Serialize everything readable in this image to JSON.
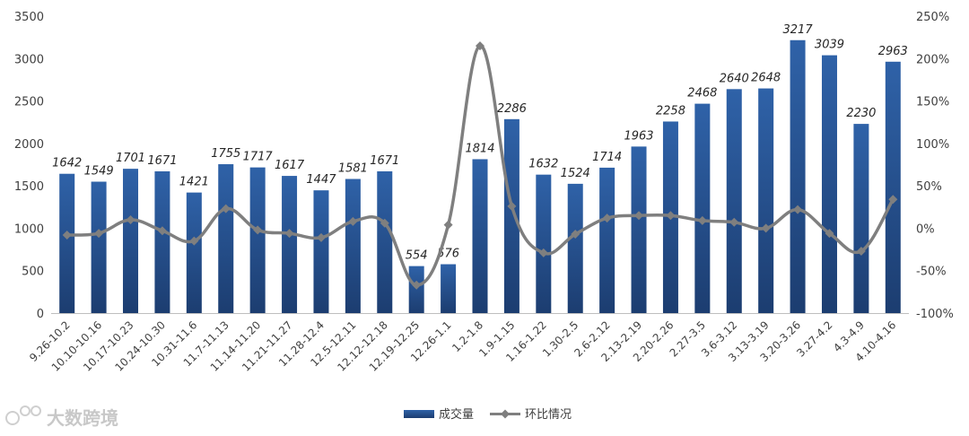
{
  "watermark": "大数跨境",
  "chart_data": {
    "type": "bar",
    "categories": [
      "9.26-10.2",
      "10.10-10.16",
      "10.17-10.23",
      "10.24-10.30",
      "10.31-11.6",
      "11.7-11.13",
      "11.14-11.20",
      "11.21-11.27",
      "11.28-12.4",
      "12.5-12.11",
      "12.12-12.18",
      "12.19-12.25",
      "12.26-1.1",
      "1.2-1.8",
      "1.9-1.15",
      "1.16-1.22",
      "1.30-2.5",
      "2.6-2.12",
      "2.13-2.19",
      "2.20-2.26",
      "2.27-3.5",
      "3.6-3.12",
      "3.13-3.19",
      "3.20-3.26",
      "3.27-4.2",
      "4.3-4.9",
      "4.10-4.16"
    ],
    "series": [
      {
        "name": "成交量",
        "type": "bar",
        "axis": "left",
        "color": "#2e5c9e",
        "values": [
          1642,
          1549,
          1701,
          1671,
          1421,
          1755,
          1717,
          1617,
          1447,
          1581,
          1671,
          554,
          576,
          1814,
          2286,
          1632,
          1524,
          1714,
          1963,
          2258,
          2468,
          2640,
          2648,
          3217,
          3039,
          2230,
          2963
        ]
      },
      {
        "name": "环比情况",
        "type": "line",
        "axis": "right",
        "color": "#7f7f7f",
        "values": [
          -8,
          -6,
          10,
          -3,
          -15,
          23,
          -2,
          -6,
          -11,
          8,
          6,
          -67,
          4,
          215,
          26,
          -29,
          -7,
          12,
          15,
          15,
          9,
          7,
          0,
          22,
          -6,
          -27,
          34
        ]
      }
    ],
    "y_left": {
      "min": 0,
      "max": 3500,
      "step": 500,
      "ticks": [
        "0",
        "500",
        "1000",
        "1500",
        "2000",
        "2500",
        "3000",
        "3500"
      ]
    },
    "y_right": {
      "min": -100,
      "max": 250,
      "step": 50,
      "ticks": [
        "-100%",
        "-50%",
        "0%",
        "50%",
        "100%",
        "150%",
        "200%",
        "250%"
      ]
    },
    "title": "",
    "grid": false,
    "legend": "bottom-center"
  }
}
